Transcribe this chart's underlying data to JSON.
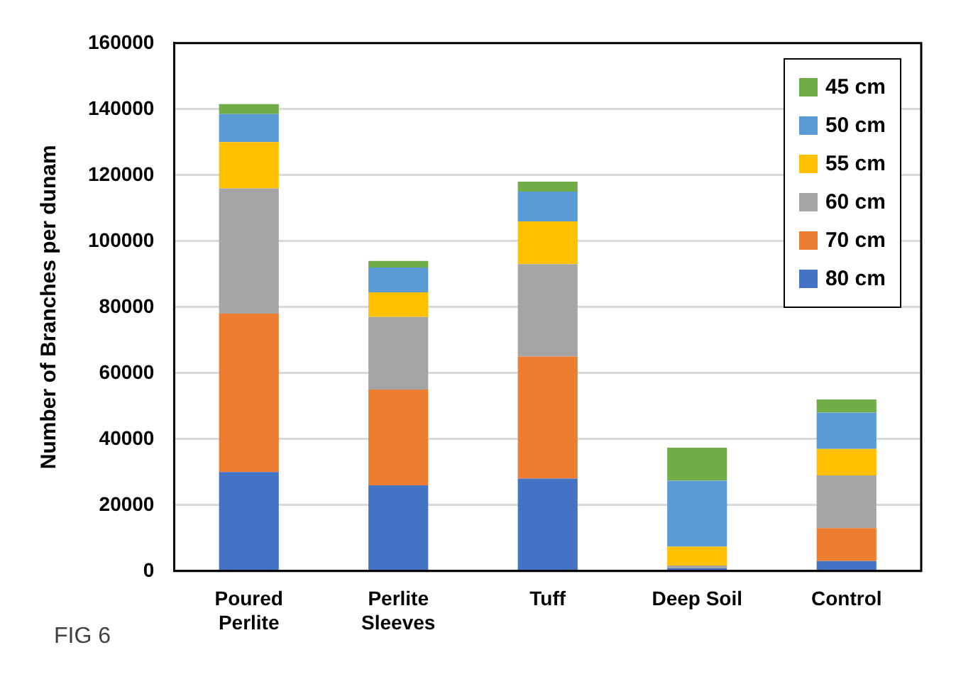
{
  "chart_data": {
    "type": "bar",
    "stacked": true,
    "ylabel": "Number of Branches per dunam",
    "categories": [
      "Poured Perlite",
      "Perlite Sleeves",
      "Tuff",
      "Deep Soil",
      "Control"
    ],
    "series": [
      {
        "name": "80 cm",
        "color": "#4472c4",
        "values": [
          30000,
          26000,
          28000,
          800,
          3000
        ]
      },
      {
        "name": "70 cm",
        "color": "#ed7d31",
        "values": [
          48000,
          29000,
          37000,
          0,
          10000
        ]
      },
      {
        "name": "60 cm",
        "color": "#a5a5a5",
        "values": [
          38000,
          22000,
          28000,
          900,
          16000
        ]
      },
      {
        "name": "55 cm",
        "color": "#ffc000",
        "values": [
          14000,
          7500,
          13000,
          5700,
          8000
        ]
      },
      {
        "name": "50 cm",
        "color": "#5b9bd5",
        "values": [
          8500,
          7500,
          9000,
          20000,
          11000
        ]
      },
      {
        "name": "45 cm",
        "color": "#70ad47",
        "values": [
          3000,
          2000,
          3000,
          10000,
          4000
        ]
      }
    ],
    "ylim": [
      0,
      160000
    ],
    "yticks": [
      0,
      20000,
      40000,
      60000,
      80000,
      100000,
      120000,
      140000,
      160000
    ],
    "grid": "y",
    "legend": "top right",
    "annotations": [
      "FIG 6"
    ]
  }
}
